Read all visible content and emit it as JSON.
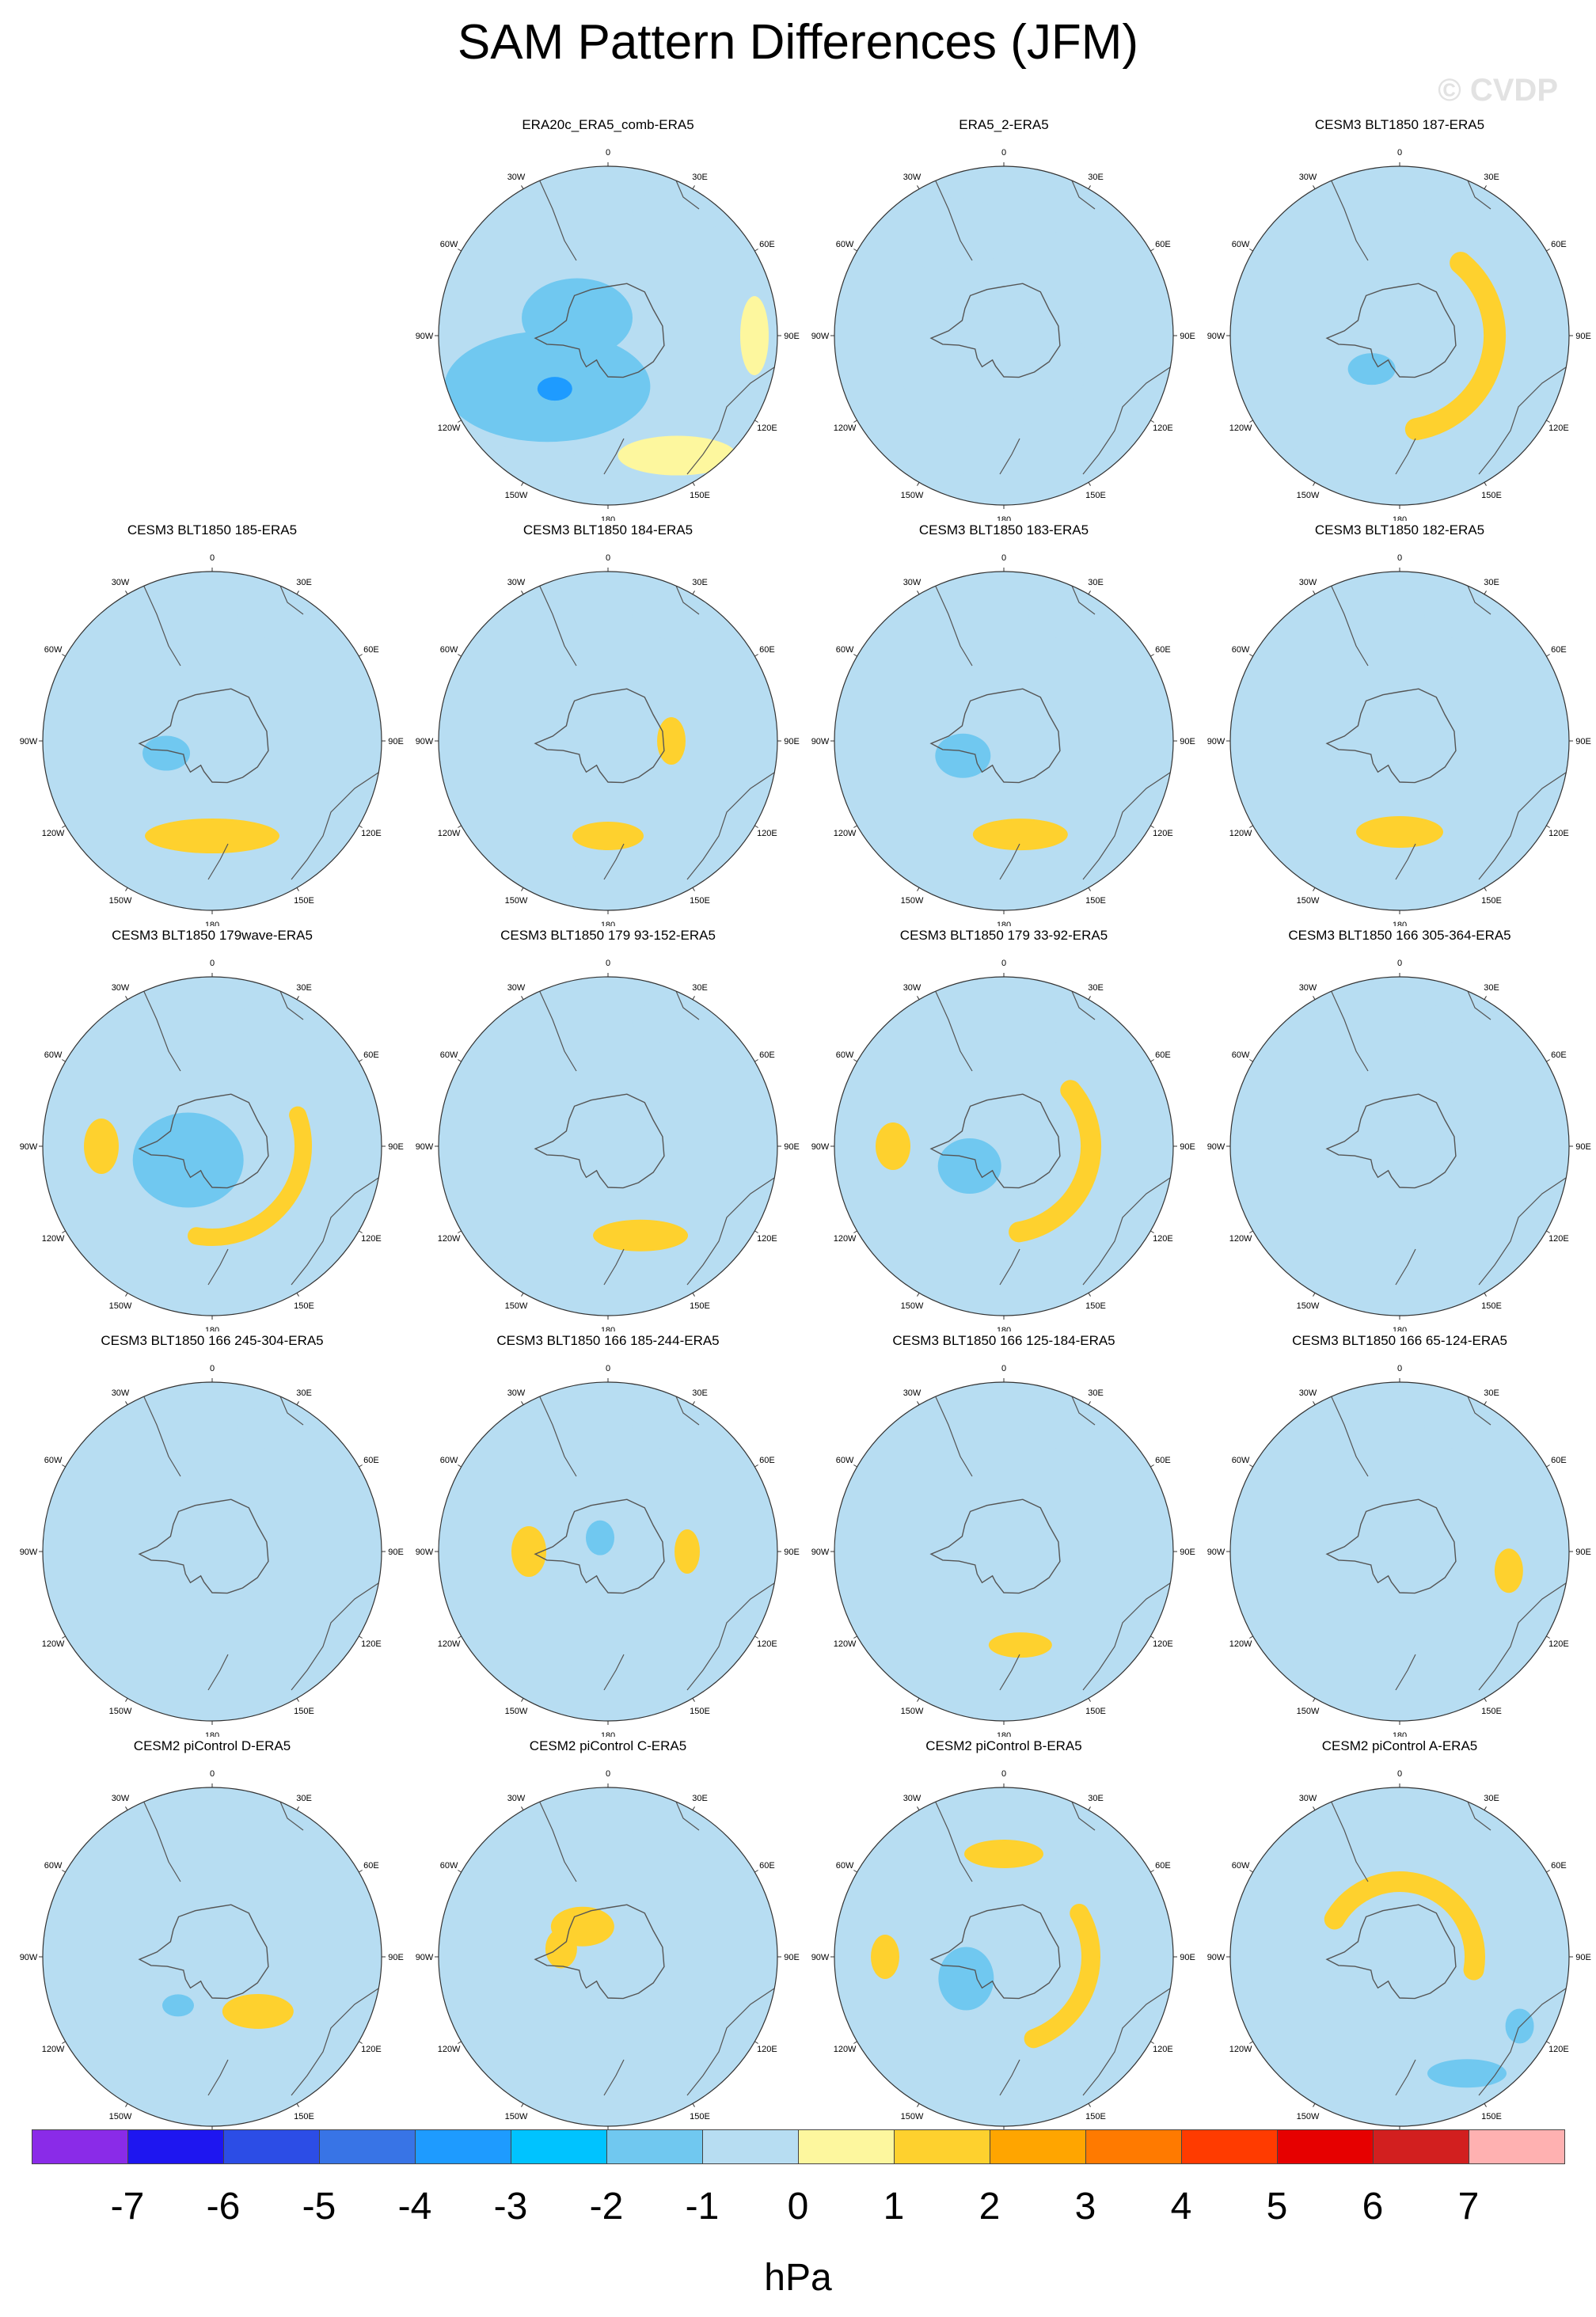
{
  "title": "SAM Pattern Differences (JFM)",
  "watermark": "© CVDP",
  "units": "hPa",
  "colors": {
    "map_background": "#b7ddf2",
    "coastline": "#555555"
  },
  "longitude_labels": [
    "0",
    "30E",
    "60E",
    "90E",
    "120E",
    "150E",
    "180",
    "150W",
    "120W",
    "90W",
    "60W",
    "30W"
  ],
  "colorbar": {
    "boxes": [
      {
        "color": "#8a2be8"
      },
      {
        "color": "#1e16f0"
      },
      {
        "color": "#2c4de6"
      },
      {
        "color": "#3874e6"
      },
      {
        "color": "#1e9bff"
      },
      {
        "color": "#00c3ff"
      },
      {
        "color": "#70c8f0"
      },
      {
        "color": "#b7ddf2"
      },
      {
        "color": "#fdf79e"
      },
      {
        "color": "#fed12e"
      },
      {
        "color": "#ffa500"
      },
      {
        "color": "#ff7a00"
      },
      {
        "color": "#ff3b00"
      },
      {
        "color": "#e60000"
      },
      {
        "color": "#d21f1f"
      },
      {
        "color": "#ffb1b1"
      }
    ],
    "labels": [
      "-7",
      "-6",
      "-5",
      "-4",
      "-3",
      "-2",
      "-1",
      "0",
      "1",
      "2",
      "3",
      "4",
      "5",
      "6",
      "7"
    ]
  },
  "panels": [
    {
      "title": "ERA20c_ERA5_comb-ERA5",
      "row": 0,
      "col": 1,
      "yellow": 0.1,
      "mid": [],
      "blobs": [
        {
          "c": "#70c8f0",
          "r": 100,
          "a": 230,
          "rx": 130,
          "ry": 70
        },
        {
          "c": "#70c8f0",
          "r": 45,
          "a": 300,
          "rx": 70,
          "ry": 50
        },
        {
          "c": "#1e9bff",
          "r": 95,
          "a": 225,
          "rx": 22,
          "ry": 15
        },
        {
          "c": "#fdf79e",
          "r": 175,
          "a": 150,
          "rx": 75,
          "ry": 25
        },
        {
          "c": "#fdf79e",
          "r": 185,
          "a": 90,
          "rx": 18,
          "ry": 50
        }
      ]
    },
    {
      "title": "ERA5_2-ERA5",
      "row": 0,
      "col": 2,
      "yellow": 0.55,
      "mid": [],
      "blobs": [
        {
          "c": "#b7ddf2",
          "r": 40,
          "a": 200,
          "rx": 120,
          "ry": 80
        },
        {
          "c": "#b7ddf2",
          "r": 150,
          "a": 330,
          "rx": 90,
          "ry": 45
        }
      ]
    },
    {
      "title": "CESM3 BLT1850 187-ERA5",
      "row": 0,
      "col": 3,
      "yellow": 0.7,
      "mid": [
        {
          "c": "#fed12e",
          "a0": 40,
          "a1": 170,
          "r": 120,
          "w": 28
        }
      ],
      "blobs": [
        {
          "c": "#70c8f0",
          "r": 55,
          "a": 220,
          "rx": 30,
          "ry": 20
        }
      ]
    },
    {
      "title": "CESM3 BLT1850 185-ERA5",
      "row": 1,
      "col": 0,
      "yellow": 0.65,
      "mid": [],
      "blobs": [
        {
          "c": "#70c8f0",
          "r": 60,
          "a": 255,
          "rx": 30,
          "ry": 22
        },
        {
          "c": "#fed12e",
          "r": 120,
          "a": 180,
          "rx": 85,
          "ry": 22
        }
      ]
    },
    {
      "title": "CESM3 BLT1850 184-ERA5",
      "row": 1,
      "col": 1,
      "yellow": 0.65,
      "mid": [],
      "blobs": [
        {
          "c": "#fed12e",
          "r": 80,
          "a": 90,
          "rx": 18,
          "ry": 30
        },
        {
          "c": "#fed12e",
          "r": 120,
          "a": 180,
          "rx": 45,
          "ry": 18
        }
      ]
    },
    {
      "title": "CESM3 BLT1850 183-ERA5",
      "row": 1,
      "col": 2,
      "yellow": 0.6,
      "mid": [],
      "blobs": [
        {
          "c": "#70c8f0",
          "r": 55,
          "a": 250,
          "rx": 35,
          "ry": 28
        },
        {
          "c": "#fed12e",
          "r": 120,
          "a": 170,
          "rx": 60,
          "ry": 20
        }
      ]
    },
    {
      "title": "CESM3 BLT1850 182-ERA5",
      "row": 1,
      "col": 3,
      "yellow": 0.65,
      "mid": [],
      "blobs": [
        {
          "c": "#fed12e",
          "r": 115,
          "a": 180,
          "rx": 55,
          "ry": 20
        }
      ]
    },
    {
      "title": "CESM3 BLT1850 179wave-ERA5",
      "row": 2,
      "col": 0,
      "yellow": 0.75,
      "mid": [
        {
          "c": "#fed12e",
          "a0": 70,
          "a1": 190,
          "r": 115,
          "w": 22
        }
      ],
      "blobs": [
        {
          "c": "#70c8f0",
          "r": 35,
          "a": 240,
          "rx": 70,
          "ry": 60
        },
        {
          "c": "#fed12e",
          "r": 140,
          "a": 270,
          "rx": 22,
          "ry": 35
        }
      ]
    },
    {
      "title": "CESM3 BLT1850 179 93-152-ERA5",
      "row": 2,
      "col": 1,
      "yellow": 0.55,
      "mid": [],
      "blobs": [
        {
          "c": "#fed12e",
          "r": 120,
          "a": 160,
          "rx": 60,
          "ry": 20
        }
      ]
    },
    {
      "title": "CESM3 BLT1850 179 33-92-ERA5",
      "row": 2,
      "col": 2,
      "yellow": 0.65,
      "mid": [
        {
          "c": "#fed12e",
          "a0": 50,
          "a1": 170,
          "r": 110,
          "w": 26
        }
      ],
      "blobs": [
        {
          "c": "#70c8f0",
          "r": 50,
          "a": 240,
          "rx": 40,
          "ry": 35
        },
        {
          "c": "#fed12e",
          "r": 140,
          "a": 270,
          "rx": 22,
          "ry": 30
        }
      ]
    },
    {
      "title": "CESM3 BLT1850 166 305-364-ERA5",
      "row": 2,
      "col": 3,
      "yellow": 0.55,
      "mid": [],
      "blobs": []
    },
    {
      "title": "CESM3 BLT1850 166 245-304-ERA5",
      "row": 3,
      "col": 0,
      "yellow": 0.6,
      "mid": [],
      "blobs": []
    },
    {
      "title": "CESM3 BLT1850 166 185-244-ERA5",
      "row": 3,
      "col": 1,
      "yellow": 0.6,
      "mid": [],
      "blobs": [
        {
          "c": "#fed12e",
          "r": 100,
          "a": 270,
          "rx": 22,
          "ry": 32
        },
        {
          "c": "#fed12e",
          "r": 100,
          "a": 90,
          "rx": 16,
          "ry": 28
        },
        {
          "c": "#70c8f0",
          "r": 20,
          "a": 330,
          "rx": 18,
          "ry": 22
        }
      ]
    },
    {
      "title": "CESM3 BLT1850 166 125-184-ERA5",
      "row": 3,
      "col": 2,
      "yellow": 0.6,
      "mid": [],
      "blobs": [
        {
          "c": "#fed12e",
          "r": 120,
          "a": 170,
          "rx": 40,
          "ry": 16
        }
      ]
    },
    {
      "title": "CESM3 BLT1850 166 65-124-ERA5",
      "row": 3,
      "col": 3,
      "yellow": 0.6,
      "mid": [],
      "blobs": [
        {
          "c": "#fed12e",
          "r": 140,
          "a": 100,
          "rx": 18,
          "ry": 28
        }
      ]
    },
    {
      "title": "CESM2 piControl D-ERA5",
      "row": 4,
      "col": 0,
      "yellow": 0.6,
      "mid": [],
      "blobs": [
        {
          "c": "#fed12e",
          "r": 90,
          "a": 140,
          "rx": 45,
          "ry": 22
        },
        {
          "c": "#70c8f0",
          "r": 75,
          "a": 215,
          "rx": 20,
          "ry": 14
        }
      ]
    },
    {
      "title": "CESM2 piControl C-ERA5",
      "row": 4,
      "col": 1,
      "yellow": 0.6,
      "mid": [],
      "blobs": [
        {
          "c": "#fed12e",
          "r": 50,
          "a": 320,
          "rx": 40,
          "ry": 25
        },
        {
          "c": "#fed12e",
          "r": 60,
          "a": 280,
          "rx": 20,
          "ry": 25
        }
      ]
    },
    {
      "title": "CESM2 piControl B-ERA5",
      "row": 4,
      "col": 2,
      "yellow": 0.65,
      "mid": [
        {
          "c": "#fed12e",
          "a0": 60,
          "a1": 160,
          "r": 110,
          "w": 24
        }
      ],
      "blobs": [
        {
          "c": "#70c8f0",
          "r": 55,
          "a": 240,
          "rx": 35,
          "ry": 40
        },
        {
          "c": "#fed12e",
          "r": 130,
          "a": 0,
          "rx": 50,
          "ry": 18
        },
        {
          "c": "#fed12e",
          "r": 150,
          "a": 270,
          "rx": 18,
          "ry": 28
        }
      ]
    },
    {
      "title": "CESM2 piControl A-ERA5",
      "row": 4,
      "col": 3,
      "yellow": 0.7,
      "mid": [
        {
          "c": "#fed12e",
          "a0": 300,
          "a1": 460,
          "r": 95,
          "w": 26
        }
      ],
      "blobs": [
        {
          "c": "#70c8f0",
          "r": 170,
          "a": 150,
          "rx": 50,
          "ry": 18
        },
        {
          "c": "#70c8f0",
          "r": 175,
          "a": 120,
          "rx": 18,
          "ry": 22
        }
      ]
    }
  ]
}
